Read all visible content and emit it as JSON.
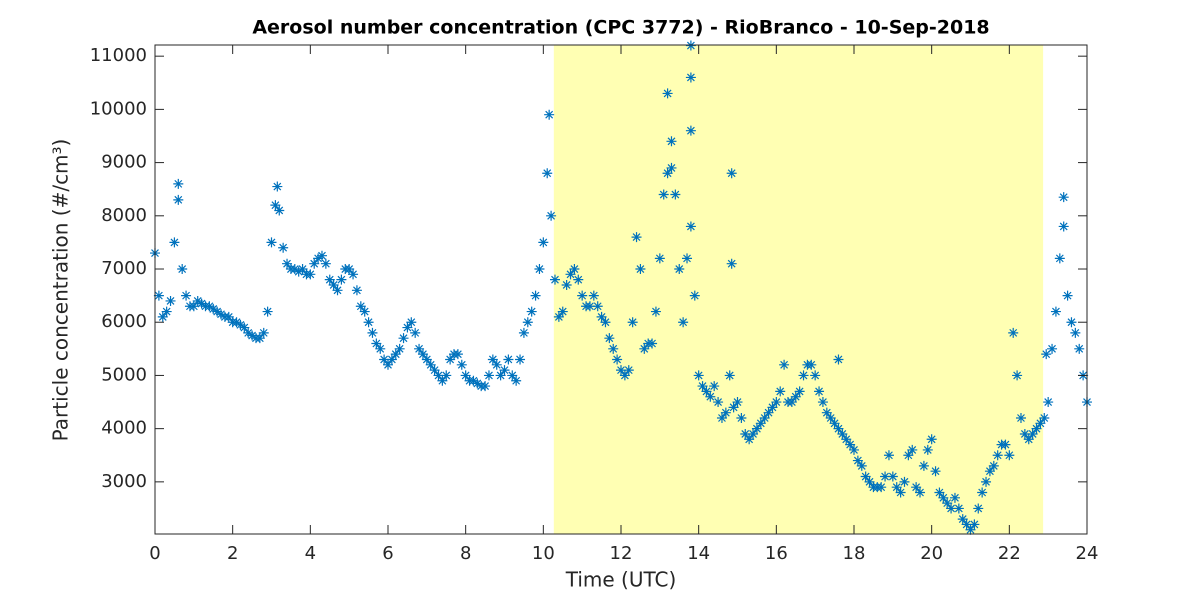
{
  "chart_data": {
    "type": "scatter",
    "title": "Aerosol number concentration (CPC 3772) - RioBranco - 10-Sep-2018",
    "xlabel": "Time (UTC)",
    "ylabel": "Particle concentration (#/cm³)",
    "color": "#0072bd",
    "shaded_region": [
      10.27,
      22.87
    ],
    "shaded_color": "#ffffb3",
    "xlim": [
      0,
      24
    ],
    "xticks": [
      0,
      2,
      4,
      6,
      8,
      10,
      12,
      14,
      16,
      18,
      20,
      22,
      24
    ],
    "ylim": [
      2020,
      11210
    ],
    "yticks": [
      3000,
      4000,
      5000,
      6000,
      7000,
      8000,
      9000,
      10000,
      11000
    ],
    "x": [
      0,
      0.1,
      0.2,
      0.3,
      0.4,
      0.5,
      0.6,
      0.7,
      0.8,
      0.9,
      1,
      1.1,
      1.2,
      1.3,
      1.4,
      1.5,
      1.6,
      1.7,
      1.8,
      1.9,
      2,
      2.1,
      2.2,
      2.3,
      2.4,
      2.5,
      2.6,
      2.7,
      2.8,
      2.9,
      3,
      3.1,
      3.2,
      3.3,
      3.4,
      3.5,
      3.6,
      3.7,
      3.8,
      3.9,
      4,
      4.1,
      4.2,
      4.3,
      4.4,
      4.5,
      4.6,
      4.7,
      4.8,
      4.9,
      5,
      5.1,
      5.2,
      5.3,
      5.4,
      5.5,
      5.6,
      5.7,
      5.8,
      5.9,
      6,
      6.1,
      6.2,
      6.3,
      6.4,
      6.5,
      6.6,
      6.7,
      6.8,
      6.9,
      7,
      7.1,
      7.2,
      7.3,
      7.4,
      7.5,
      7.6,
      7.7,
      7.8,
      7.9,
      8,
      8.1,
      8.2,
      8.3,
      8.4,
      8.5,
      8.6,
      8.7,
      8.8,
      8.9,
      9,
      9.1,
      9.2,
      9.3,
      9.4,
      9.5,
      9.6,
      9.7,
      9.8,
      9.9,
      10,
      10.1,
      10.2,
      10.3,
      10.4,
      10.5,
      10.6,
      10.7,
      10.8,
      10.9,
      11,
      11.1,
      11.2,
      11.3,
      11.4,
      11.5,
      11.6,
      11.7,
      11.8,
      11.9,
      12,
      12.1,
      12.2,
      12.3,
      12.4,
      12.5,
      12.6,
      12.7,
      12.8,
      12.9,
      13,
      13.1,
      13.2,
      13.3,
      13.4,
      13.5,
      13.6,
      13.7,
      13.8,
      13.9,
      14,
      14.1,
      14.2,
      14.3,
      14.4,
      14.5,
      14.6,
      14.7,
      14.8,
      14.9,
      15,
      15.1,
      15.2,
      15.3,
      15.4,
      15.5,
      15.6,
      15.7,
      15.8,
      15.9,
      16,
      16.1,
      16.2,
      16.3,
      16.4,
      16.5,
      16.6,
      16.7,
      16.8,
      16.9,
      17,
      17.1,
      17.2,
      17.3,
      17.4,
      17.5,
      17.6,
      17.7,
      17.8,
      17.9,
      18,
      18.1,
      18.2,
      18.3,
      18.4,
      18.5,
      18.6,
      18.7,
      18.8,
      18.9,
      19,
      19.1,
      19.2,
      19.3,
      19.4,
      19.5,
      19.6,
      19.7,
      19.8,
      19.9,
      20,
      20.1,
      20.2,
      20.3,
      20.4,
      20.5,
      20.6,
      20.7,
      20.8,
      20.9,
      21,
      21.1,
      21.2,
      21.3,
      21.4,
      21.5,
      21.6,
      21.7,
      21.8,
      21.9,
      22,
      22.1,
      22.2,
      22.3,
      22.4,
      22.5,
      22.6,
      22.7,
      22.8,
      22.9,
      23,
      23.1,
      23.2,
      23.3,
      23.4,
      23.5,
      23.6,
      23.7,
      23.8,
      23.9,
      24,
      13.2,
      13.8,
      13.8,
      13.8,
      14.85,
      14.85,
      10.15,
      13.3,
      17.6,
      22.95,
      0.6,
      3.15,
      23.4
    ],
    "values": [
      7300,
      6500,
      6100,
      6200,
      6400,
      7500,
      8300,
      7000,
      6500,
      6300,
      6300,
      6400,
      6350,
      6300,
      6300,
      6250,
      6200,
      6150,
      6100,
      6100,
      6000,
      6000,
      5950,
      5900,
      5800,
      5750,
      5700,
      5700,
      5800,
      6200,
      7500,
      8200,
      8100,
      7400,
      7100,
      7000,
      7000,
      6950,
      7000,
      6900,
      6900,
      7100,
      7200,
      7250,
      7100,
      6800,
      6700,
      6600,
      6800,
      7000,
      7000,
      6900,
      6600,
      6300,
      6200,
      6000,
      5800,
      5600,
      5500,
      5300,
      5200,
      5300,
      5400,
      5500,
      5700,
      5900,
      6000,
      5800,
      5500,
      5400,
      5300,
      5200,
      5100,
      5000,
      4900,
      5000,
      5300,
      5400,
      5400,
      5200,
      5000,
      4900,
      4900,
      4850,
      4800,
      4800,
      5000,
      5300,
      5200,
      5000,
      5100,
      5300,
      5000,
      4900,
      5300,
      5800,
      6000,
      6200,
      6500,
      7000,
      7500,
      8800,
      8000,
      6800,
      6100,
      6200,
      6700,
      6900,
      7000,
      6800,
      6500,
      6300,
      6300,
      6500,
      6300,
      6100,
      6000,
      5700,
      5500,
      5300,
      5100,
      5000,
      5100,
      6000,
      7600,
      7000,
      5500,
      5600,
      5600,
      6200,
      7200,
      8400,
      8800,
      8900,
      8400,
      7000,
      6000,
      7200,
      7800,
      6500,
      5000,
      4800,
      4700,
      4600,
      4800,
      4500,
      4200,
      4300,
      5000,
      4400,
      4500,
      4200,
      3900,
      3800,
      3900,
      4000,
      4100,
      4200,
      4300,
      4400,
      4500,
      4700,
      5200,
      4500,
      4500,
      4600,
      4700,
      5000,
      5200,
      5200,
      5000,
      4700,
      4500,
      4300,
      4200,
      4100,
      4000,
      3900,
      3800,
      3700,
      3600,
      3400,
      3300,
      3100,
      3000,
      2900,
      2900,
      2900,
      3100,
      3500,
      3100,
      2900,
      2800,
      3000,
      3500,
      3600,
      2900,
      2800,
      3300,
      3600,
      3800,
      3200,
      2800,
      2700,
      2600,
      2500,
      2700,
      2500,
      2300,
      2200,
      2100,
      2200,
      2500,
      2800,
      3000,
      3200,
      3300,
      3500,
      3700,
      3700,
      3500,
      5800,
      5000,
      4200,
      3900,
      3800,
      3900,
      4000,
      4100,
      4200,
      4500,
      5500,
      6200,
      7200,
      7800,
      6500,
      6000,
      5800,
      5500,
      5000,
      4500,
      10300,
      11200,
      10600,
      9600,
      8800,
      7100,
      9900,
      9400,
      5300,
      5400,
      8600,
      8550,
      8350
    ]
  }
}
